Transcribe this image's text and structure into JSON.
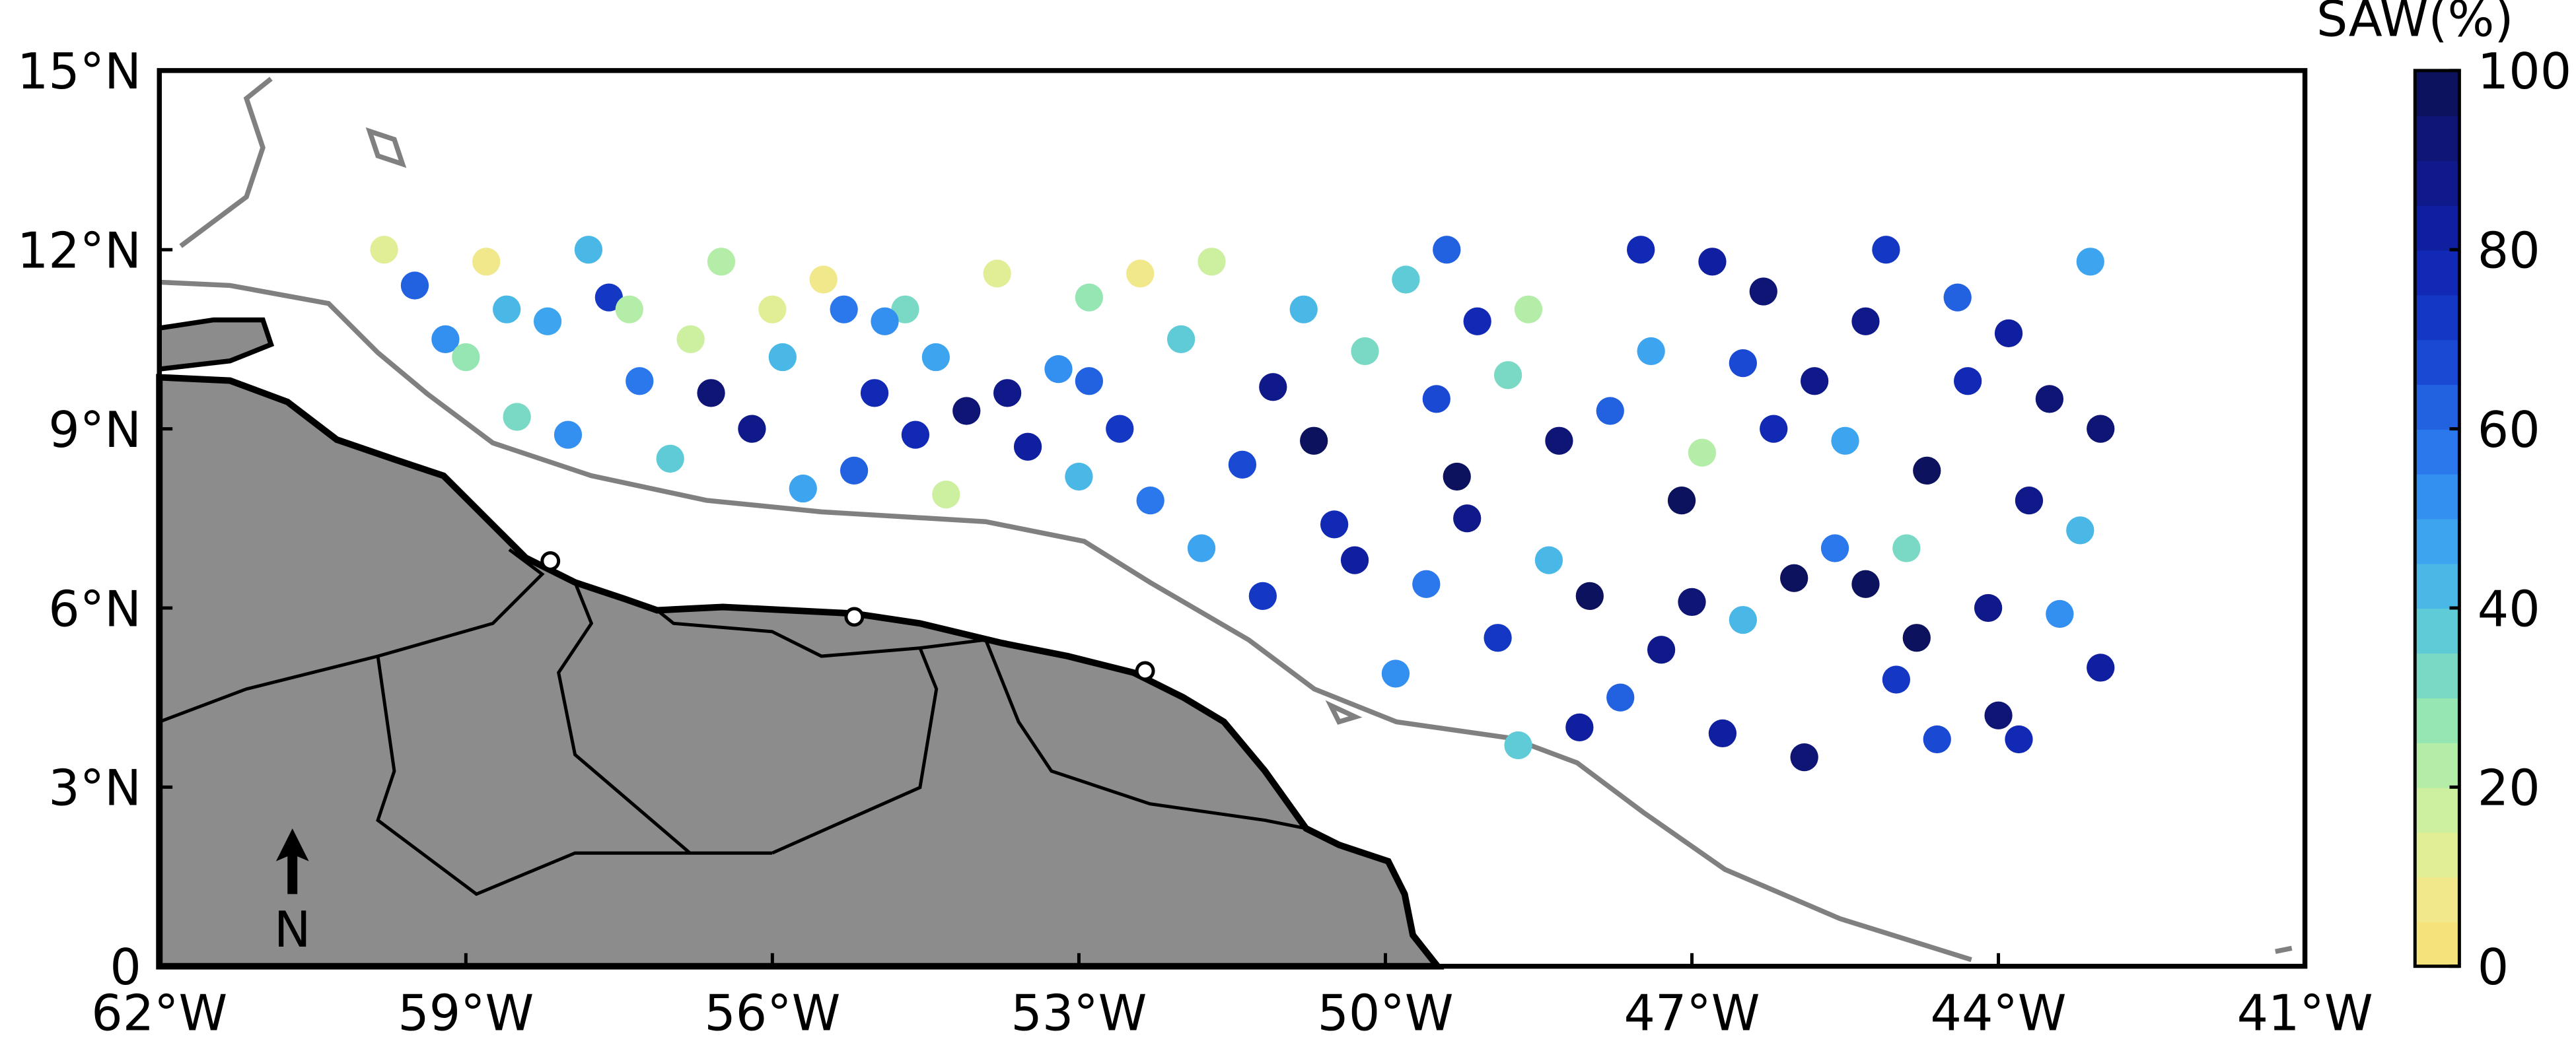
{
  "chart_data": {
    "type": "scatter",
    "colorbar_title": "SAW(%)",
    "north_label": "N",
    "xlim": [
      -62,
      -41
    ],
    "ylim": [
      0,
      15
    ],
    "xticks": [
      {
        "value": -62,
        "label": "62°W"
      },
      {
        "value": -59,
        "label": "59°W"
      },
      {
        "value": -56,
        "label": "56°W"
      },
      {
        "value": -53,
        "label": "53°W"
      },
      {
        "value": -50,
        "label": "50°W"
      },
      {
        "value": -47,
        "label": "47°W"
      },
      {
        "value": -44,
        "label": "44°W"
      },
      {
        "value": -41,
        "label": "41°W"
      }
    ],
    "yticks": [
      0,
      {
        "value": 3,
        "label": "3°N"
      },
      {
        "value": 6,
        "label": "6°N"
      },
      {
        "value": 9,
        "label": "9°N"
      },
      {
        "value": 12,
        "label": "12°N"
      },
      {
        "value": 15,
        "label": "15°N"
      }
    ],
    "clim": [
      0,
      100
    ],
    "cticks": [
      0,
      20,
      40,
      60,
      80,
      100
    ],
    "colormap": [
      "#f5e27a",
      "#f0e88a",
      "#e2ee95",
      "#cdf0a0",
      "#b4eda8",
      "#96e6b4",
      "#7ad9c4",
      "#5ecbd6",
      "#4ab8e6",
      "#3da5ef",
      "#338ff0",
      "#2a78ec",
      "#2261e0",
      "#1a4ad4",
      "#1538c4",
      "#1129b4",
      "#0f1fa0",
      "#0f198a",
      "#0e1575",
      "#0d125e"
    ],
    "x": [
      -59.8,
      -59.5,
      -59.2,
      -58.8,
      -58.5,
      -58.2,
      -57.8,
      -57.6,
      -57.3,
      -57,
      -56.8,
      -56.5,
      -56.2,
      -55.9,
      -55.5,
      -55.2,
      -55,
      -54.7,
      -54.4,
      -54.1,
      -53.8,
      -53.5,
      -53.2,
      -52.9,
      -52.6,
      -52.3,
      -52,
      -51.7,
      -51.4,
      -51.1,
      -50.8,
      -50.5,
      -50.2,
      -59,
      -58,
      -56,
      -55.7,
      -54.9,
      -54.3,
      -53.7,
      -53,
      -52.4,
      -51.8,
      -51.2,
      -50.7,
      -50.3,
      -52.9,
      -57.4,
      -58.6,
      -56.6,
      -55.3,
      -54.6,
      -49.8,
      -49.5,
      -49.2,
      -48.9,
      -48.6,
      -48.3,
      -48,
      -47.7,
      -47.4,
      -47.1,
      -46.8,
      -46.5,
      -46.2,
      -45.9,
      -45.6,
      -45.3,
      -45,
      -44.7,
      -44.4,
      -44.1,
      -43.8,
      -43.5,
      -43.2,
      -43,
      -43.1,
      -43,
      -49.9,
      -49.4,
      -48.8,
      -48.1,
      -47.5,
      -47.3,
      -46.9,
      -46.3,
      -46,
      -45.5,
      -45.1,
      -44.8,
      -44.3,
      -44,
      -43.7,
      -43.4,
      -44.6,
      -46.7,
      -48.4,
      -49.1,
      -47.8,
      -45.8,
      -44.9,
      -47,
      -49.6,
      -45.3,
      -43.9,
      -46.5,
      -48.7,
      -49.3
    ],
    "y": [
      12,
      11.4,
      10.5,
      11.8,
      9.2,
      10.8,
      12,
      11.2,
      9.8,
      8.5,
      10.5,
      11.8,
      9,
      10.2,
      11.5,
      8.3,
      9.6,
      11,
      10.2,
      9.3,
      11.6,
      8.7,
      10,
      11.2,
      9,
      7.8,
      10.5,
      11.8,
      8.4,
      9.7,
      11,
      7.4,
      10.3,
      10.2,
      8.9,
      11,
      8,
      10.8,
      7.9,
      9.6,
      8.2,
      11.6,
      7,
      6.2,
      8.8,
      6.8,
      9.8,
      11,
      11,
      9.6,
      11,
      8.9,
      11.5,
      9.5,
      7.5,
      5.5,
      11,
      8.8,
      6.2,
      4.5,
      10.3,
      7.8,
      11.8,
      5.8,
      9,
      3.5,
      7,
      10.8,
      4.8,
      8.3,
      11.2,
      6,
      3.8,
      9.5,
      7.3,
      5,
      11.8,
      9,
      4.9,
      12,
      9.9,
      4,
      12,
      5.3,
      8.6,
      11.3,
      6.5,
      8.8,
      12,
      5.5,
      9.8,
      4.2,
      7.8,
      5.9,
      3.8,
      3.9,
      6.8,
      10.8,
      9.3,
      9.8,
      7,
      6.1,
      6.4,
      6.4,
      10.6,
      10.1,
      3.7,
      8.2
    ],
    "values": [
      10,
      60,
      50,
      5,
      30,
      45,
      40,
      70,
      55,
      35,
      15,
      20,
      85,
      40,
      5,
      60,
      75,
      30,
      45,
      90,
      10,
      80,
      50,
      25,
      70,
      55,
      35,
      15,
      65,
      85,
      40,
      75,
      30,
      25,
      50,
      10,
      45,
      50,
      15,
      85,
      40,
      5,
      45,
      70,
      95,
      80,
      60,
      20,
      40,
      90,
      55,
      75,
      35,
      65,
      85,
      70,
      20,
      90,
      100,
      60,
      45,
      95,
      80,
      40,
      75,
      90,
      55,
      85,
      70,
      95,
      60,
      85,
      75,
      90,
      40,
      80,
      45,
      90,
      50,
      60,
      30,
      80,
      75,
      85,
      20,
      90,
      100,
      45,
      70,
      95,
      75,
      90,
      85,
      50,
      65,
      80,
      40,
      75,
      60,
      85,
      30,
      90,
      55,
      100,
      80,
      65,
      35,
      95
    ]
  }
}
